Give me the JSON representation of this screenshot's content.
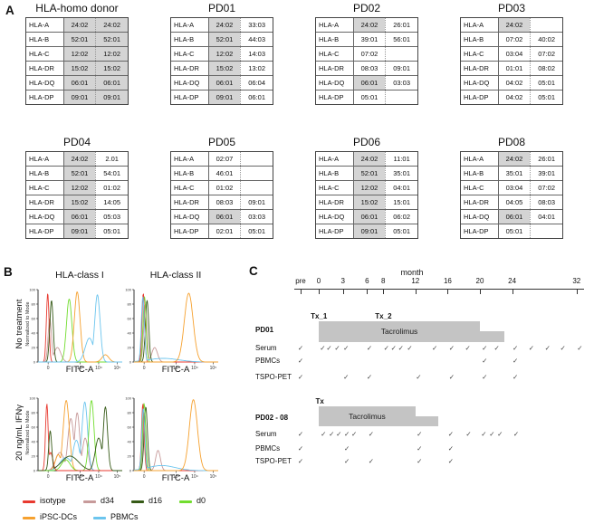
{
  "panelA": {
    "label": "A",
    "tables": [
      {
        "id": "hla-homo-donor",
        "title": "HLA-homo donor",
        "rows": [
          {
            "label": "HLA-A",
            "a1": "24:02",
            "a2": "24:02",
            "s1": true,
            "s2": true
          },
          {
            "label": "HLA-B",
            "a1": "52:01",
            "a2": "52:01",
            "s1": true,
            "s2": true
          },
          {
            "label": "HLA-C",
            "a1": "12:02",
            "a2": "12:02",
            "s1": true,
            "s2": true
          },
          {
            "label": "HLA-DR",
            "a1": "15:02",
            "a2": "15:02",
            "s1": true,
            "s2": true
          },
          {
            "label": "HLA-DQ",
            "a1": "06:01",
            "a2": "06:01",
            "s1": true,
            "s2": true
          },
          {
            "label": "HLA-DP",
            "a1": "09:01",
            "a2": "09:01",
            "s1": true,
            "s2": true
          }
        ]
      },
      {
        "id": "pd01",
        "title": "PD01",
        "rows": [
          {
            "label": "HLA-A",
            "a1": "24:02",
            "a2": "33:03",
            "s1": true,
            "s2": false
          },
          {
            "label": "HLA-B",
            "a1": "52:01",
            "a2": "44:03",
            "s1": true,
            "s2": false
          },
          {
            "label": "HLA-C",
            "a1": "12:02",
            "a2": "14:03",
            "s1": true,
            "s2": false
          },
          {
            "label": "HLA-DR",
            "a1": "15:02",
            "a2": "13:02",
            "s1": true,
            "s2": false
          },
          {
            "label": "HLA-DQ",
            "a1": "06:01",
            "a2": "06:04",
            "s1": true,
            "s2": false
          },
          {
            "label": "HLA-DP",
            "a1": "09:01",
            "a2": "06:01",
            "s1": true,
            "s2": false
          }
        ]
      },
      {
        "id": "pd02",
        "title": "PD02",
        "rows": [
          {
            "label": "HLA-A",
            "a1": "24:02",
            "a2": "26:01",
            "s1": true,
            "s2": false
          },
          {
            "label": "HLA-B",
            "a1": "39:01",
            "a2": "56:01",
            "s1": false,
            "s2": false
          },
          {
            "label": "HLA-C",
            "a1": "07:02",
            "a2": "",
            "s1": false,
            "s2": false
          },
          {
            "label": "HLA-DR",
            "a1": "08:03",
            "a2": "09:01",
            "s1": false,
            "s2": false
          },
          {
            "label": "HLA-DQ",
            "a1": "06:01",
            "a2": "03:03",
            "s1": true,
            "s2": false
          },
          {
            "label": "HLA-DP",
            "a1": "05:01",
            "a2": "",
            "s1": false,
            "s2": false
          }
        ]
      },
      {
        "id": "pd03",
        "title": "PD03",
        "rows": [
          {
            "label": "HLA-A",
            "a1": "24:02",
            "a2": "",
            "s1": true,
            "s2": false
          },
          {
            "label": "HLA-B",
            "a1": "07:02",
            "a2": "40:02",
            "s1": false,
            "s2": false
          },
          {
            "label": "HLA-C",
            "a1": "03:04",
            "a2": "07:02",
            "s1": false,
            "s2": false
          },
          {
            "label": "HLA-DR",
            "a1": "01:01",
            "a2": "08:02",
            "s1": false,
            "s2": false
          },
          {
            "label": "HLA-DQ",
            "a1": "04:02",
            "a2": "05:01",
            "s1": false,
            "s2": false
          },
          {
            "label": "HLA-DP",
            "a1": "04:02",
            "a2": "05:01",
            "s1": false,
            "s2": false
          }
        ]
      },
      {
        "id": "pd04",
        "title": "PD04",
        "rows": [
          {
            "label": "HLA-A",
            "a1": "24:02",
            "a2": "2.01",
            "s1": true,
            "s2": false
          },
          {
            "label": "HLA-B",
            "a1": "52:01",
            "a2": "54:01",
            "s1": true,
            "s2": false
          },
          {
            "label": "HLA-C",
            "a1": "12:02",
            "a2": "01:02",
            "s1": true,
            "s2": false
          },
          {
            "label": "HLA-DR",
            "a1": "15:02",
            "a2": "14:05",
            "s1": true,
            "s2": false
          },
          {
            "label": "HLA-DQ",
            "a1": "06:01",
            "a2": "05:03",
            "s1": true,
            "s2": false
          },
          {
            "label": "HLA-DP",
            "a1": "09:01",
            "a2": "05:01",
            "s1": true,
            "s2": false
          }
        ]
      },
      {
        "id": "pd05",
        "title": "PD05",
        "rows": [
          {
            "label": "HLA-A",
            "a1": "02:07",
            "a2": "",
            "s1": false,
            "s2": false
          },
          {
            "label": "HLA-B",
            "a1": "46:01",
            "a2": "",
            "s1": false,
            "s2": false
          },
          {
            "label": "HLA-C",
            "a1": "01:02",
            "a2": "",
            "s1": false,
            "s2": false
          },
          {
            "label": "HLA-DR",
            "a1": "08:03",
            "a2": "09:01",
            "s1": false,
            "s2": false
          },
          {
            "label": "HLA-DQ",
            "a1": "06:01",
            "a2": "03:03",
            "s1": true,
            "s2": false
          },
          {
            "label": "HLA-DP",
            "a1": "02:01",
            "a2": "05:01",
            "s1": false,
            "s2": false
          }
        ]
      },
      {
        "id": "pd06",
        "title": "PD06",
        "rows": [
          {
            "label": "HLA-A",
            "a1": "24:02",
            "a2": "11:01",
            "s1": true,
            "s2": false
          },
          {
            "label": "HLA-B",
            "a1": "52:01",
            "a2": "35:01",
            "s1": true,
            "s2": false
          },
          {
            "label": "HLA-C",
            "a1": "12:02",
            "a2": "04:01",
            "s1": true,
            "s2": false
          },
          {
            "label": "HLA-DR",
            "a1": "15:02",
            "a2": "15:01",
            "s1": true,
            "s2": false
          },
          {
            "label": "HLA-DQ",
            "a1": "06:01",
            "a2": "06:02",
            "s1": true,
            "s2": false
          },
          {
            "label": "HLA-DP",
            "a1": "09:01",
            "a2": "05:01",
            "s1": true,
            "s2": false
          }
        ]
      },
      {
        "id": "pd08",
        "title": "PD08",
        "rows": [
          {
            "label": "HLA-A",
            "a1": "24:02",
            "a2": "26:01",
            "s1": true,
            "s2": false
          },
          {
            "label": "HLA-B",
            "a1": "35:01",
            "a2": "39:01",
            "s1": false,
            "s2": false
          },
          {
            "label": "HLA-C",
            "a1": "03:04",
            "a2": "07:02",
            "s1": false,
            "s2": false
          },
          {
            "label": "HLA-DR",
            "a1": "04:05",
            "a2": "08:03",
            "s1": false,
            "s2": false
          },
          {
            "label": "HLA-DQ",
            "a1": "06:01",
            "a2": "04:01",
            "s1": true,
            "s2": false
          },
          {
            "label": "HLA-DP",
            "a1": "05:01",
            "a2": "",
            "s1": false,
            "s2": false
          }
        ]
      }
    ]
  },
  "panelB": {
    "label": "B",
    "col_titles": [
      "HLA-class I",
      "HLA-class II"
    ],
    "row_titles": [
      "No treatment",
      "20 ng/mL IFNγ"
    ],
    "y_axis_label": "Normalized to Mode",
    "x_axis_label": "FITC-A",
    "y_ticks": [
      0,
      20,
      40,
      60,
      80,
      100
    ],
    "x_ticks": [
      {
        "pos": 0.12,
        "label": "0"
      },
      {
        "pos": 0.5,
        "label": "10³"
      },
      {
        "pos": 0.72,
        "label": "10⁴"
      },
      {
        "pos": 0.94,
        "label": "10⁵"
      }
    ],
    "legend": [
      {
        "label": "isotype",
        "color": "#e8392f"
      },
      {
        "label": "d34",
        "color": "#c79a9a"
      },
      {
        "label": "d16",
        "color": "#365a17"
      },
      {
        "label": "d0",
        "color": "#72dd2f"
      },
      {
        "label": "iPSC-DCs",
        "color": "#f6a12f"
      },
      {
        "label": "PBMCs",
        "color": "#6cc5ee"
      }
    ]
  },
  "panelC": {
    "label": "C",
    "axis_title": "month",
    "bar_color": "#c4c4c4",
    "check_glyph": "✓",
    "ticks": [
      {
        "label": "pre",
        "month": -2.25
      },
      {
        "label": "0",
        "month": 0
      },
      {
        "label": "3",
        "month": 3
      },
      {
        "label": "6",
        "month": 6
      },
      {
        "label": "8",
        "month": 8
      },
      {
        "label": "12",
        "month": 12
      },
      {
        "label": "16",
        "month": 16
      },
      {
        "label": "20",
        "month": 20
      },
      {
        "label": "24",
        "month": 24
      },
      {
        "label": "32",
        "month": 32
      }
    ],
    "groups": [
      {
        "name": "PD01",
        "tx_labels": [
          {
            "text": "Tx_1",
            "month": -1
          },
          {
            "text": "Tx_2",
            "month": 7
          }
        ],
        "bar": {
          "label": "Tacrolimus",
          "full_range": [
            0,
            20
          ],
          "step_range": [
            20,
            23
          ]
        },
        "rows": [
          {
            "label": "Serum",
            "checks": [
              -2.25,
              0.5,
              1.3,
              2.3,
              3.4,
              6.3,
              8.4,
              9.3,
              10.2,
              11.3,
              14.4,
              16.5,
              18.5,
              20.6,
              22.1,
              24.4,
              26.4,
              28.4,
              30.3,
              32.4
            ]
          },
          {
            "label": "PBMCs",
            "checks": [
              -2.25,
              20.6,
              24.4
            ]
          },
          {
            "label": "TSPO-PET",
            "checks": [
              -2.25,
              3.4,
              6.3,
              12.4,
              16.5,
              20.6,
              24.4
            ]
          }
        ]
      },
      {
        "name": "PD02 - 08",
        "tx_labels": [
          {
            "text": "Tx",
            "month": -0.4
          }
        ],
        "bar": {
          "label": "Tacrolimus",
          "full_range": [
            0,
            12
          ],
          "step_range": [
            12,
            14.8
          ]
        },
        "rows": [
          {
            "label": "Serum",
            "checks": [
              -2.25,
              0.6,
              1.6,
              2.5,
              3.5,
              4.4,
              6.5,
              12.5,
              16.4,
              18.6,
              20.5,
              21.5,
              22.5,
              24.5
            ]
          },
          {
            "label": "PBMCs",
            "checks": [
              -2.25,
              3.5,
              12.5,
              16.4
            ]
          },
          {
            "label": "TSPO-PET",
            "checks": [
              -2.25,
              3.5,
              6.5,
              12.5,
              16.4
            ]
          }
        ]
      }
    ]
  },
  "chart_data": [
    {
      "type": "area",
      "subplot": "no-treatment-hla-class-1",
      "title": "HLA-class I",
      "condition": "No treatment",
      "xlabel": "FITC-A",
      "ylabel": "Normalized to Mode",
      "ylim": [
        0,
        100
      ],
      "x_scale": "biexponential-log",
      "series": [
        {
          "name": "d34",
          "peaks": [
            [
              0.14,
              0.6,
              0.02
            ],
            [
              0.23,
              0.2,
              0.04
            ]
          ]
        },
        {
          "name": "isotype",
          "peaks": [
            [
              0.115,
              0.95,
              0.016
            ]
          ]
        },
        {
          "name": "d16",
          "peaks": [
            [
              0.16,
              0.85,
              0.02
            ]
          ]
        },
        {
          "name": "d0",
          "peaks": [
            [
              0.37,
              0.87,
              0.032
            ]
          ]
        },
        {
          "name": "iPSC-DCs",
          "peaks": [
            [
              0.465,
              0.97,
              0.034
            ],
            [
              0.8,
              0.1,
              0.04
            ]
          ]
        },
        {
          "name": "PBMCs",
          "peaks": [
            [
              0.705,
              0.93,
              0.032
            ],
            [
              0.61,
              0.33,
              0.05
            ]
          ]
        }
      ]
    },
    {
      "type": "area",
      "subplot": "no-treatment-hla-class-2",
      "title": "HLA-class II",
      "condition": "No treatment",
      "xlabel": "FITC-A",
      "ylabel": "Normalized to Mode",
      "ylim": [
        0,
        100
      ],
      "x_scale": "biexponential-log",
      "series": [
        {
          "name": "d34",
          "peaks": [
            [
              0.135,
              0.8,
              0.02
            ],
            [
              0.245,
              0.2,
              0.033
            ]
          ]
        },
        {
          "name": "d16",
          "peaks": [
            [
              0.155,
              0.85,
              0.02
            ]
          ]
        },
        {
          "name": "d0",
          "peaks": [
            [
              0.125,
              0.9,
              0.018
            ]
          ]
        },
        {
          "name": "isotype",
          "peaks": [
            [
              0.11,
              0.95,
              0.016
            ]
          ]
        },
        {
          "name": "PBMCs",
          "peaks": [
            [
              0.105,
              0.9,
              0.018
            ],
            [
              0.35,
              0.05,
              0.18
            ]
          ]
        },
        {
          "name": "iPSC-DCs",
          "peaks": [
            [
              0.65,
              0.95,
              0.052
            ]
          ]
        }
      ]
    },
    {
      "type": "area",
      "subplot": "ifng-hla-class-1",
      "title": "HLA-class I",
      "condition": "20 ng/mL IFNγ",
      "xlabel": "FITC-A",
      "ylabel": "Normalized to Mode",
      "ylim": [
        0,
        100
      ],
      "x_scale": "biexponential-log",
      "series": [
        {
          "name": "d34",
          "peaks": [
            [
              0.26,
              0.25,
              0.05
            ],
            [
              0.39,
              0.72,
              0.035
            ],
            [
              0.465,
              0.8,
              0.03
            ],
            [
              0.56,
              0.45,
              0.033
            ]
          ]
        },
        {
          "name": "iPSC-DCs",
          "peaks": [
            [
              0.24,
              0.22,
              0.035
            ],
            [
              0.335,
              0.97,
              0.036
            ]
          ]
        },
        {
          "name": "PBMCs",
          "peaks": [
            [
              0.33,
              0.18,
              0.07
            ],
            [
              0.455,
              0.42,
              0.04
            ],
            [
              0.555,
              0.95,
              0.033
            ]
          ]
        },
        {
          "name": "d0",
          "peaks": [
            [
              0.33,
              0.15,
              0.05
            ],
            [
              0.635,
              0.97,
              0.03
            ]
          ]
        },
        {
          "name": "isotype",
          "peaks": [
            [
              0.105,
              0.92,
              0.016
            ],
            [
              0.15,
              0.25,
              0.025
            ]
          ]
        },
        {
          "name": "d16",
          "peaks": [
            [
              0.145,
              0.55,
              0.018
            ],
            [
              0.38,
              0.2,
              0.1
            ],
            [
              0.72,
              0.45,
              0.04
            ],
            [
              0.8,
              0.88,
              0.026
            ]
          ]
        }
      ]
    },
    {
      "type": "area",
      "subplot": "ifng-hla-class-2",
      "title": "HLA-class II",
      "condition": "20 ng/mL IFNγ",
      "xlabel": "FITC-A",
      "ylabel": "Normalized to Mode",
      "ylim": [
        0,
        100
      ],
      "x_scale": "biexponential-log",
      "series": [
        {
          "name": "d34",
          "peaks": [
            [
              0.125,
              0.8,
              0.018
            ],
            [
              0.285,
              0.28,
              0.028
            ]
          ]
        },
        {
          "name": "d16",
          "peaks": [
            [
              0.14,
              0.88,
              0.02
            ]
          ]
        },
        {
          "name": "d0",
          "peaks": [
            [
              0.12,
              0.93,
              0.018
            ]
          ]
        },
        {
          "name": "isotype",
          "peaks": [
            [
              0.105,
              0.92,
              0.016
            ]
          ]
        },
        {
          "name": "PBMCs",
          "peaks": [
            [
              0.11,
              0.86,
              0.018
            ],
            [
              0.33,
              0.07,
              0.16
            ]
          ]
        },
        {
          "name": "iPSC-DCs",
          "peaks": [
            [
              0.705,
              0.98,
              0.048
            ]
          ]
        }
      ]
    }
  ]
}
